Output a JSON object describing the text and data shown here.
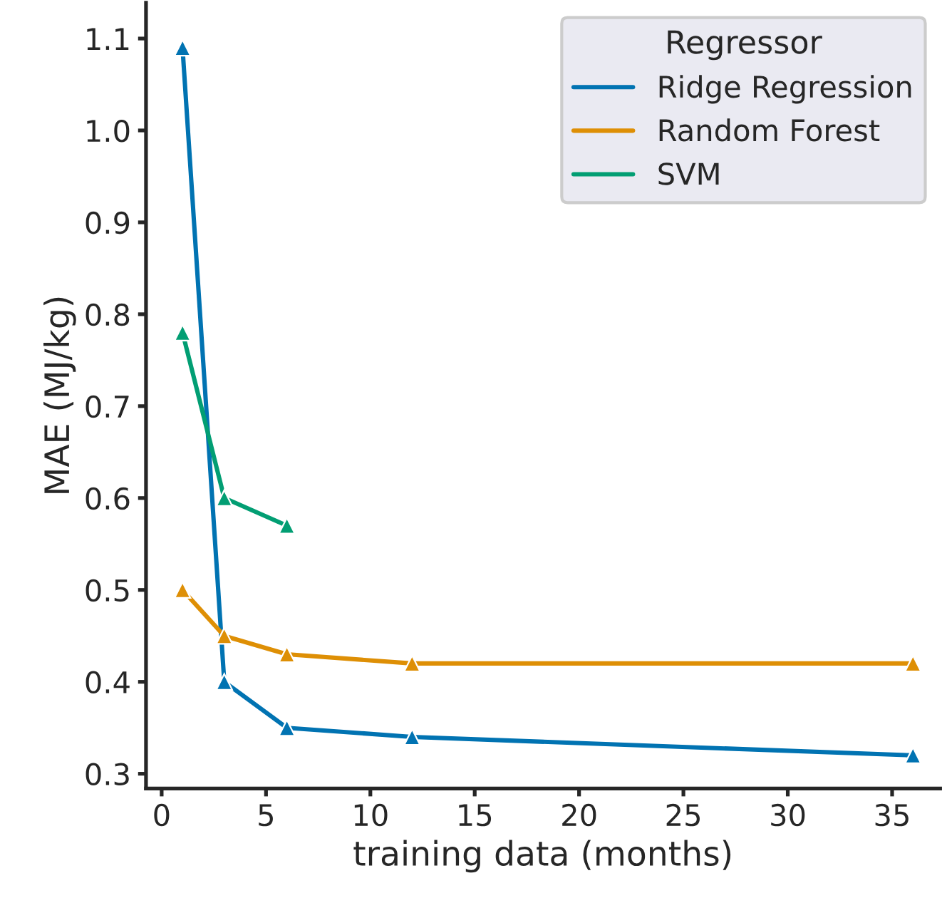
{
  "chart_data": {
    "type": "line",
    "xlabel": "training data (months)",
    "ylabel": "MAE (MJ/kg)",
    "legend_title": "Regressor",
    "x": [
      1,
      3,
      6,
      12,
      36
    ],
    "series": [
      {
        "name": "Ridge Regression",
        "color": "#0173b2",
        "values": [
          1.09,
          0.4,
          0.35,
          0.34,
          0.32
        ]
      },
      {
        "name": "Random Forest",
        "color": "#de8f05",
        "values": [
          0.5,
          0.45,
          0.43,
          0.42,
          0.42
        ]
      },
      {
        "name": "SVM",
        "color": "#029e73",
        "x": [
          1,
          3,
          6
        ],
        "values": [
          0.78,
          0.6,
          0.57
        ]
      }
    ],
    "xlim": [
      -0.75,
      37.3
    ],
    "ylim": [
      0.284,
      1.139
    ],
    "xticks": [
      0,
      5,
      10,
      15,
      20,
      25,
      30,
      35
    ],
    "yticks": [
      0.3,
      0.4,
      0.5,
      0.6,
      0.7,
      0.8,
      0.9,
      {
        "value": 1.0,
        "label": "1.0"
      },
      1.1
    ],
    "marker": "triangle",
    "line_style": "solid",
    "legend": "top right",
    "grid": false
  }
}
